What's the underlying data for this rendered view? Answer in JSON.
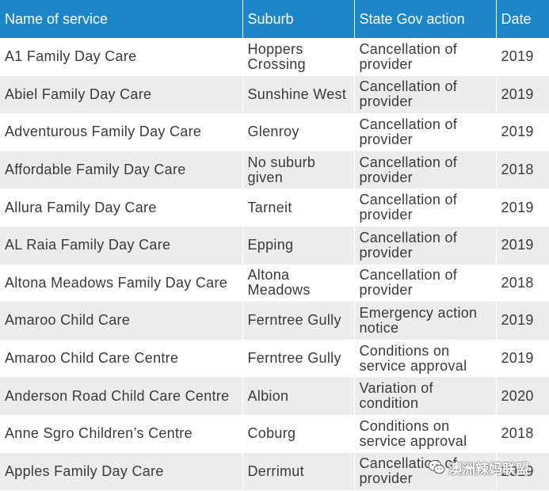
{
  "headers": [
    "Name of service",
    "Suburb",
    "State Gov action",
    "Date"
  ],
  "rows": [
    {
      "name": "A1 Family Day Care",
      "suburb": "Hoppers Crossing",
      "action": "Cancellation of provider",
      "date": "2019"
    },
    {
      "name": "Abiel Family Day Care",
      "suburb": "Sunshine West",
      "action": "Cancellation of provider",
      "date": "2019"
    },
    {
      "name": "Adventurous Family Day Care",
      "suburb": "Glenroy",
      "action": "Cancellation of provider",
      "date": "2019"
    },
    {
      "name": "Affordable Family Day Care",
      "suburb": "No suburb given",
      "action": "Cancellation of provider",
      "date": "2018"
    },
    {
      "name": "Allura Family Day Care",
      "suburb": "Tarneit",
      "action": "Cancellation of provider",
      "date": "2019"
    },
    {
      "name": "AL Raia Family Day Care",
      "suburb": "Epping",
      "action": "Cancellation of provider",
      "date": "2019"
    },
    {
      "name": "Altona Meadows Family Day Care",
      "suburb": "Altona Meadows",
      "action": "Cancellation of provider",
      "date": "2018"
    },
    {
      "name": "Amaroo Child Care",
      "suburb": "Ferntree Gully",
      "action": "Emergency action notice",
      "date": "2019"
    },
    {
      "name": "Amaroo Child Care Centre",
      "suburb": "Ferntree Gully",
      "action": "Conditions on service approval",
      "date": "2019"
    },
    {
      "name": "Anderson Road Child Care Centre",
      "suburb": "Albion",
      "action": "Variation of condition",
      "date": "2020"
    },
    {
      "name": "Anne Sgro Children’s Centre",
      "suburb": "Coburg",
      "action": "Conditions on service approval",
      "date": "2018"
    },
    {
      "name": "Apples Family Day Care",
      "suburb": "Derrimut",
      "action": "Cancellation of provider",
      "date": "2019"
    }
  ],
  "watermark": {
    "text": "澳洲辣妈联盟",
    "icon": "wechat-icon"
  }
}
